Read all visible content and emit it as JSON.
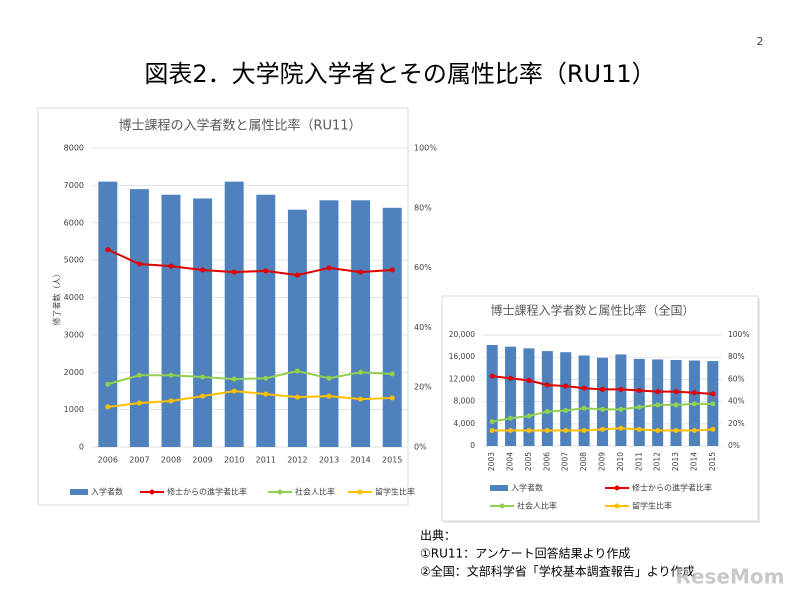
{
  "page_number": "2",
  "title": "図表2．大学院入学者とその属性比率（RU11）",
  "chart_data": [
    {
      "type": "combo",
      "title": "博士課程の入学者数と属性比率（RU11）",
      "y_label": "修了者数（人）",
      "categories": [
        "2006",
        "2007",
        "2008",
        "2009",
        "2010",
        "2011",
        "2012",
        "2013",
        "2014",
        "2015"
      ],
      "ylim": [
        0,
        8000
      ],
      "yticks": [
        0,
        1000,
        2000,
        3000,
        4000,
        5000,
        6000,
        7000,
        8000
      ],
      "y2lim": [
        0,
        100
      ],
      "y2ticks": [
        {
          "value": 0,
          "label": "0%"
        },
        {
          "value": 20,
          "label": "20%"
        },
        {
          "value": 40,
          "label": "40%"
        },
        {
          "value": 60,
          "label": "60%"
        },
        {
          "value": 80,
          "label": "80%"
        },
        {
          "value": 100,
          "label": "100%"
        }
      ],
      "legend": "bottom",
      "series": [
        {
          "name": "入学者数",
          "type": "bar",
          "color": "#4f81bd",
          "values": [
            7100,
            6900,
            6750,
            6650,
            7100,
            6750,
            6350,
            6600,
            6600,
            6400
          ]
        },
        {
          "name": "修士からの進学者比率",
          "type": "line",
          "axis": "y2",
          "color": "#e00000",
          "values": [
            66,
            61.2,
            60.5,
            59.2,
            58.5,
            58.9,
            57.5,
            59.9,
            58.5,
            59.2
          ]
        },
        {
          "name": "社会人比率",
          "type": "line",
          "axis": "y2",
          "color": "#92d050",
          "values": [
            21,
            24,
            24,
            23.4,
            22.7,
            23,
            25.4,
            23,
            25,
            24.4
          ]
        },
        {
          "name": "留学生比率",
          "type": "line",
          "axis": "y2",
          "color": "#ffc000",
          "values": [
            13.4,
            14.7,
            15.4,
            17,
            18.7,
            17.7,
            16.7,
            17,
            16,
            16.4
          ]
        }
      ]
    },
    {
      "type": "combo",
      "title": "博士課程入学者数と属性比率（全国）",
      "categories": [
        "2003",
        "2004",
        "2005",
        "2006",
        "2007",
        "2008",
        "2009",
        "2010",
        "2011",
        "2012",
        "2013",
        "2014",
        "2015"
      ],
      "ylim": [
        0,
        20000
      ],
      "yticks": [
        0,
        {
          "value": 4000,
          "label": "4,000"
        },
        {
          "value": 8000,
          "label": "8,000"
        },
        {
          "value": 12000,
          "label": "12,000"
        },
        {
          "value": 16000,
          "label": "16,000"
        },
        {
          "value": 20000,
          "label": "20,000"
        }
      ],
      "y2lim": [
        0,
        100
      ],
      "y2ticks": [
        {
          "value": 0,
          "label": "0%"
        },
        {
          "value": 20,
          "label": "20%"
        },
        {
          "value": 40,
          "label": "40%"
        },
        {
          "value": 60,
          "label": "60%"
        },
        {
          "value": 80,
          "label": "80%"
        },
        {
          "value": 100,
          "label": "100%"
        }
      ],
      "legend": "bottom",
      "series": [
        {
          "name": "入学者数",
          "type": "bar",
          "color": "#4f81bd",
          "values": [
            18200,
            17900,
            17600,
            17100,
            16900,
            16300,
            15900,
            16500,
            15700,
            15600,
            15500,
            15400,
            15300
          ]
        },
        {
          "name": "修士からの進学者比率",
          "type": "line",
          "axis": "y2",
          "color": "#e00000",
          "values": [
            63,
            61,
            59,
            55,
            54,
            52,
            51,
            51,
            50,
            49,
            49,
            48,
            47
          ]
        },
        {
          "name": "社会人比率",
          "type": "line",
          "axis": "y2",
          "color": "#92d050",
          "values": [
            22,
            25,
            27,
            31,
            32,
            34,
            33,
            33,
            35,
            37,
            37,
            38,
            38
          ]
        },
        {
          "name": "留学生比率",
          "type": "line",
          "axis": "y2",
          "color": "#ffc000",
          "values": [
            14,
            14,
            14,
            14,
            14,
            14,
            15,
            16,
            15,
            14,
            14,
            14,
            15
          ]
        }
      ]
    }
  ],
  "source": {
    "heading": "出典：",
    "lines": [
      "①RU11：アンケート回答結果より作成",
      "②全国：文部科学省「学校基本調査報告」より作成"
    ]
  },
  "watermark": "ReseMom"
}
